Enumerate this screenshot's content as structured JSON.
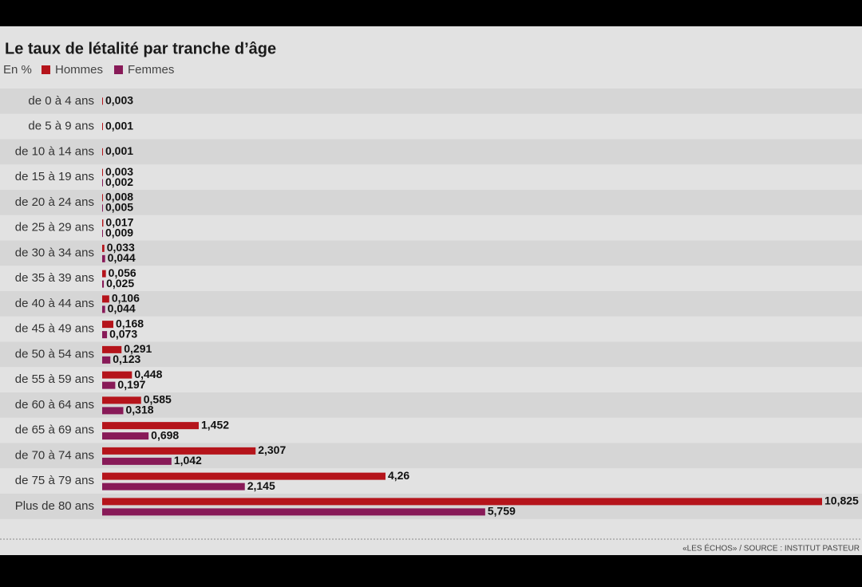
{
  "chart_data": {
    "type": "bar",
    "orientation": "horizontal",
    "title": "Le taux de létalité par tranche d’âge",
    "unit_label": "En %",
    "source": "«LES ÉCHOS» / SOURCE : INSTITUT PASTEUR",
    "categories": [
      "de 0 à 4 ans",
      "de 5 à 9 ans",
      "de 10 à 14 ans",
      "de 15 à 19 ans",
      "de 20 à 24 ans",
      "de 25 à 29 ans",
      "de 30 à 34 ans",
      "de 35 à 39 ans",
      "de 40 à 44 ans",
      "de 45 à 49 ans",
      "de 50 à 54 ans",
      "de 55 à 59 ans",
      "de 60 à 64 ans",
      "de 65 à 69 ans",
      "de 70 à 74 ans",
      "de 75 à 79 ans",
      "Plus de 80 ans"
    ],
    "series": [
      {
        "name": "Hommes",
        "color": "#b5141b",
        "values": [
          0.003,
          0.001,
          0.001,
          0.003,
          0.008,
          0.017,
          0.033,
          0.056,
          0.106,
          0.168,
          0.291,
          0.448,
          0.585,
          1.452,
          2.307,
          4.26,
          10.825
        ],
        "value_labels": [
          "0,003",
          "0,001",
          "0,001",
          "0,003",
          "0,008",
          "0,017",
          "0,033",
          "0,056",
          "0,106",
          "0,168",
          "0,291",
          "0,448",
          "0,585",
          "1,452",
          "2,307",
          "4,26",
          "10,825"
        ]
      },
      {
        "name": "Femmes",
        "color": "#881a58",
        "values": [
          null,
          null,
          null,
          0.002,
          0.005,
          0.009,
          0.044,
          0.025,
          0.044,
          0.073,
          0.123,
          0.197,
          0.318,
          0.698,
          1.042,
          2.145,
          5.759
        ],
        "value_labels": [
          null,
          null,
          null,
          "0,002",
          "0,005",
          "0,009",
          "0,044",
          "0,025",
          "0,044",
          "0,073",
          "0,123",
          "0,197",
          "0,318",
          "0,698",
          "1,042",
          "2,145",
          "5,759"
        ]
      }
    ]
  }
}
